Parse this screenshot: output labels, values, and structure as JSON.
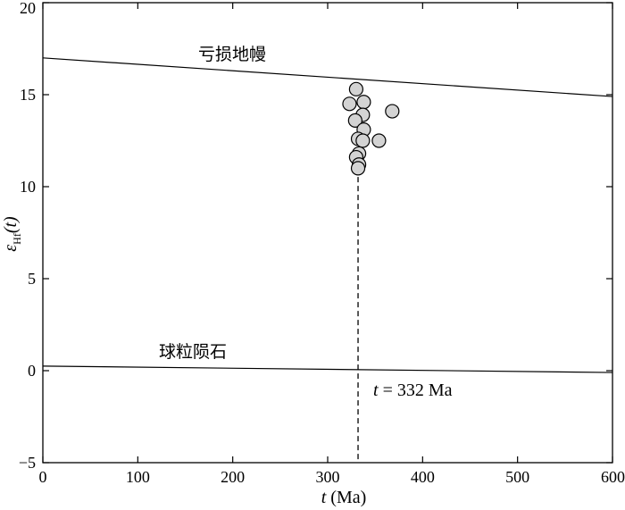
{
  "chart_data": {
    "type": "scatter",
    "xlabel": "t (Ma)",
    "xlabel_var": "t",
    "xlabel_unit": " (Ma)",
    "ylabel_sym": "ε",
    "ylabel_sub": "Hf",
    "ylabel_arg": "(t)",
    "xlim": [
      0,
      600
    ],
    "ylim": [
      -5,
      20
    ],
    "xticks": [
      0,
      100,
      200,
      300,
      400,
      500,
      600
    ],
    "yticks": [
      -5,
      0,
      5,
      10,
      15,
      20
    ],
    "grid": false,
    "reference_lines": [
      {
        "name": "亏损地幔",
        "x": [
          0,
          600
        ],
        "y": [
          17.0,
          14.9
        ]
      },
      {
        "name": "球粒陨石",
        "x": [
          0,
          600
        ],
        "y": [
          0.25,
          -0.1
        ]
      }
    ],
    "vertical_line": {
      "x": 332,
      "y_range": [
        -5,
        11.5
      ],
      "style": "dashed"
    },
    "annotation": {
      "var": "t",
      "text": " = 332 Ma"
    },
    "points": [
      {
        "x": 330,
        "y": 15.3
      },
      {
        "x": 323,
        "y": 14.5
      },
      {
        "x": 338,
        "y": 14.6
      },
      {
        "x": 368,
        "y": 14.1
      },
      {
        "x": 337,
        "y": 13.9
      },
      {
        "x": 329,
        "y": 13.6
      },
      {
        "x": 338,
        "y": 13.1
      },
      {
        "x": 332,
        "y": 12.6
      },
      {
        "x": 337,
        "y": 12.5
      },
      {
        "x": 354,
        "y": 12.5
      },
      {
        "x": 333,
        "y": 11.8
      },
      {
        "x": 330,
        "y": 11.6
      },
      {
        "x": 333,
        "y": 11.2
      },
      {
        "x": 332,
        "y": 11.0
      }
    ]
  }
}
